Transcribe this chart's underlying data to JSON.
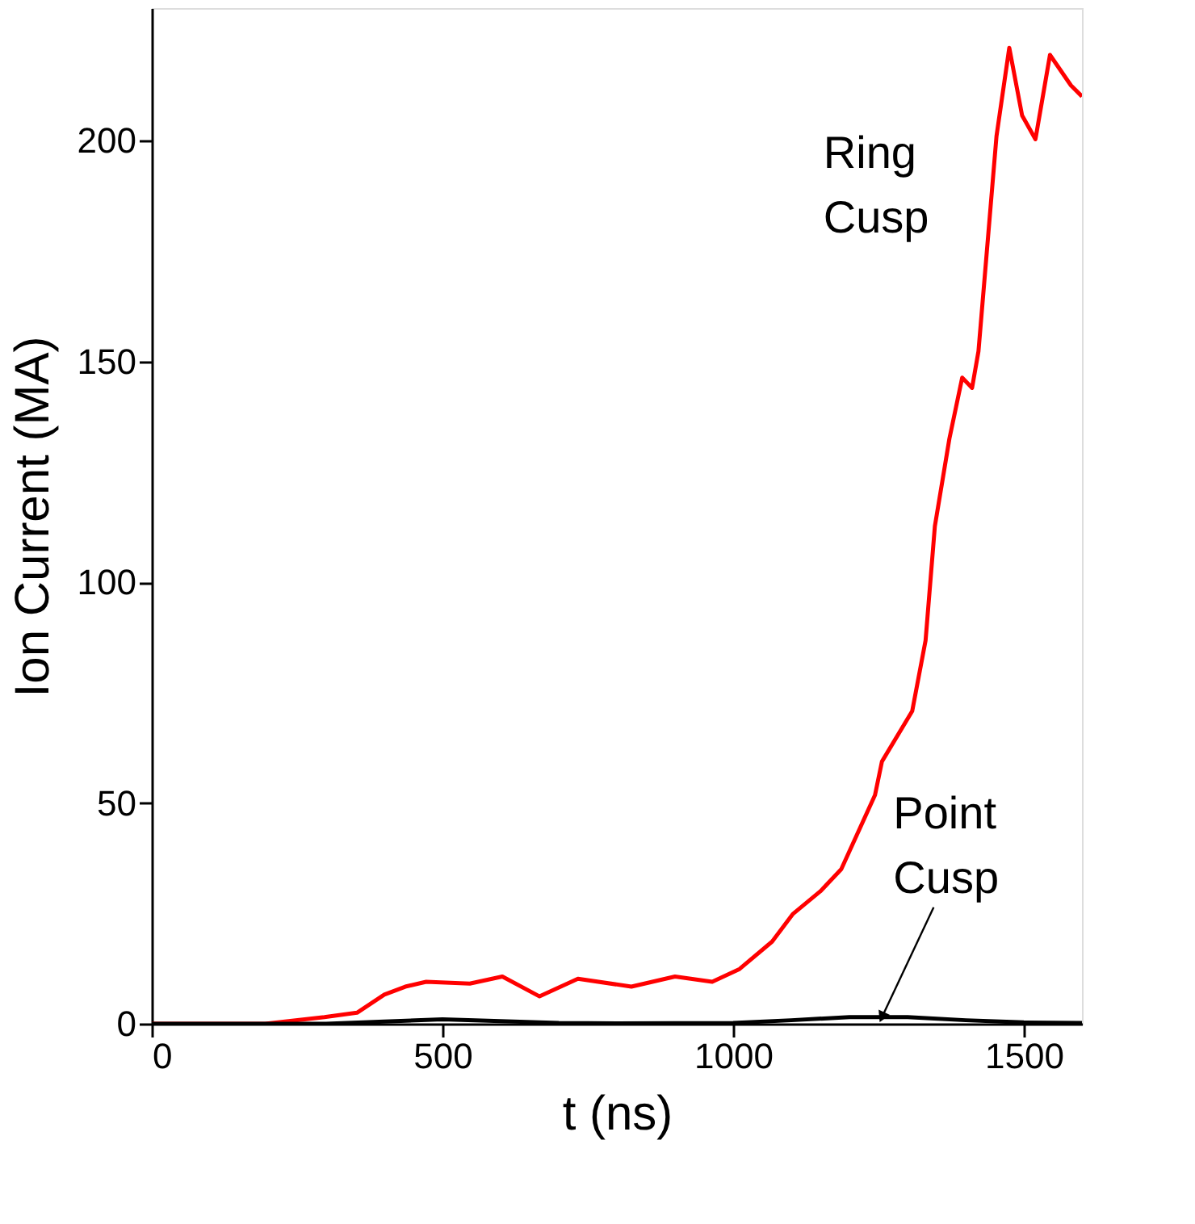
{
  "chart_data": {
    "type": "line",
    "xlabel": "t (ns)",
    "ylabel": "Ion Current (MA)",
    "xlim": [
      0,
      1600
    ],
    "ylim": [
      0,
      230
    ],
    "xticks": [
      0,
      500,
      1000,
      1500
    ],
    "yticks": [
      0,
      50,
      100,
      150,
      200
    ],
    "marker": "none",
    "line_style": "solid",
    "annotations": [
      "Ring Cusp",
      {
        "text": "Point Cusp",
        "x": 1256,
        "y": 1.5
      }
    ],
    "series": [
      {
        "color": "#ff0000",
        "x": [
          0,
          100,
          195,
          297,
          353,
          400,
          436,
          472,
          547,
          603,
          667,
          733,
          825,
          900,
          964,
          1011,
          1067,
          1103,
          1150,
          1186,
          1244,
          1256,
          1308,
          1331,
          1347,
          1372,
          1394,
          1411,
          1422,
          1453,
          1475,
          1497,
          1520,
          1545,
          1581,
          1600
        ],
        "values": [
          0,
          0,
          0,
          1.5,
          2.5,
          6.6,
          8.4,
          9.5,
          9.1,
          10.7,
          6.2,
          10.2,
          8.4,
          10.7,
          9.5,
          12.4,
          18.6,
          24.9,
          30,
          35,
          51.8,
          59.4,
          70.8,
          86.8,
          112.7,
          132.5,
          146.3,
          144,
          152.3,
          201,
          221,
          205.7,
          200.3,
          219.4,
          212.5,
          210
        ]
      },
      {
        "color": "#000000",
        "x": [
          0,
          300,
          400,
          500,
          600,
          700,
          800,
          1000,
          1100,
          1200,
          1300,
          1400,
          1500,
          1600
        ],
        "values": [
          0,
          0,
          0.5,
          1,
          0.6,
          0.2,
          0.1,
          0.2,
          0.8,
          1.5,
          1.5,
          0.8,
          0.3,
          0.2
        ]
      }
    ]
  }
}
